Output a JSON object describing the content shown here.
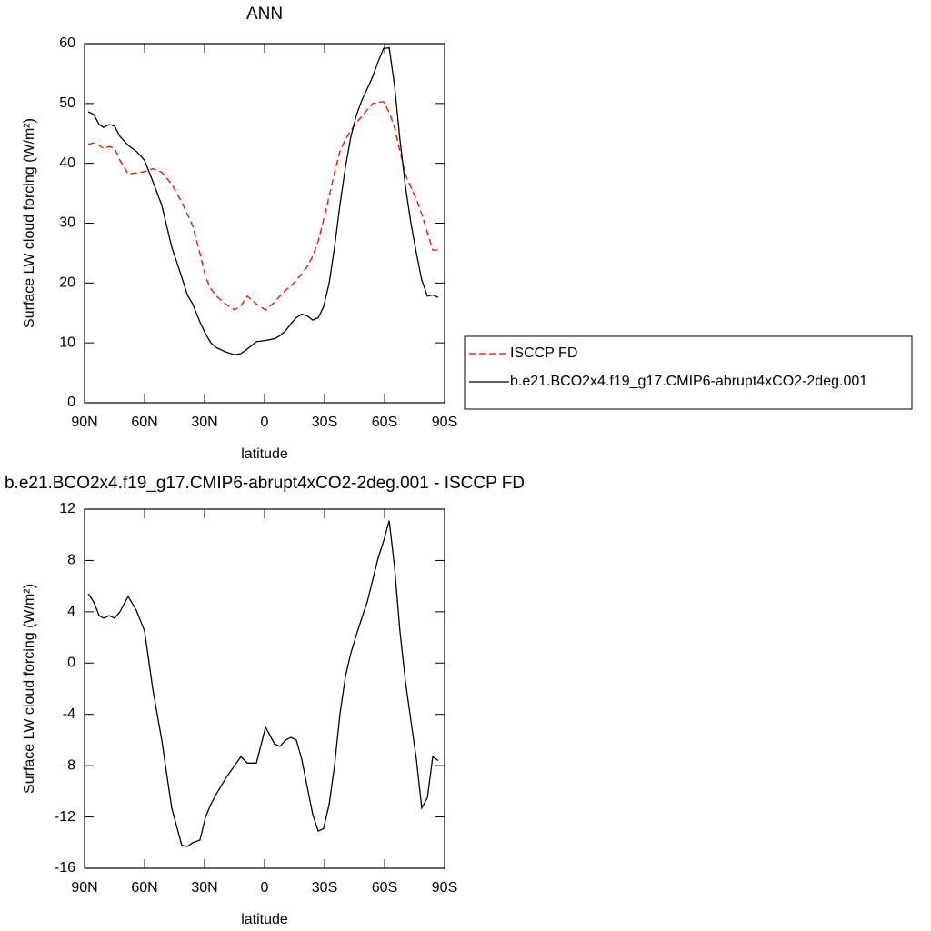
{
  "chart_data": [
    {
      "type": "line",
      "title": "ANN",
      "xlabel": "latitude",
      "ylabel": "Surface LW cloud forcing (W/m²)",
      "x": [
        88.2,
        85.5,
        82.7,
        80.5,
        77.7,
        75.0,
        72.3,
        68.2,
        64.1,
        60.0,
        55.9,
        51.4,
        46.4,
        41.4,
        38.6,
        35.9,
        32.3,
        29.5,
        26.8,
        24.1,
        19.5,
        15.0,
        11.8,
        8.6,
        4.1,
        -0.5,
        -5.0,
        -7.7,
        -10.5,
        -13.2,
        -15.9,
        -18.6,
        -21.4,
        -24.1,
        -26.8,
        -29.5,
        -32.3,
        -35.0,
        -37.7,
        -40.5,
        -43.2,
        -45.9,
        -48.6,
        -51.4,
        -54.1,
        -56.8,
        -59.5,
        -62.3,
        -65.0,
        -67.7,
        -70.5,
        -73.2,
        -75.9,
        -78.6,
        -81.4,
        -84.1,
        -86.8
      ],
      "series": [
        {
          "name": "ISCCP FD",
          "color": "#ff0000",
          "dashed": true,
          "values": [
            43.2,
            43.4,
            43,
            42.5,
            42.8,
            42.5,
            40.5,
            38.2,
            38.4,
            38.6,
            39.1,
            38.5,
            36.5,
            33.5,
            31.5,
            29.5,
            25,
            21,
            19,
            17.8,
            16.5,
            15.5,
            16.2,
            17.8,
            16.5,
            15.5,
            16.8,
            17.8,
            18.8,
            19.5,
            20.5,
            21.5,
            22.8,
            24.5,
            27,
            30.5,
            34.5,
            38.5,
            42,
            44,
            45.5,
            46.8,
            47.8,
            49,
            50,
            50.2,
            50.3,
            48.5,
            46,
            42,
            38,
            36,
            34,
            31.5,
            28.5,
            25.5,
            25.5
          ]
        },
        {
          "name": "b.e21.BCO2x4.f19_g17.CMIP6-abrupt4xCO2-2deg.001",
          "color": "#000000",
          "dashed": false,
          "values": [
            48.6,
            48.2,
            46.5,
            46,
            46.5,
            46.2,
            44.5,
            43,
            42,
            40.5,
            37,
            33,
            26,
            21,
            18,
            16.5,
            13.5,
            11.5,
            10,
            9.2,
            8.5,
            8,
            8.2,
            9,
            10.2,
            10.4,
            10.7,
            11.2,
            12,
            13.2,
            14.2,
            14.8,
            14.5,
            13.8,
            14.2,
            16,
            20,
            26,
            33,
            39.5,
            44.5,
            48,
            50.5,
            52.5,
            54.5,
            57,
            59.2,
            59.3,
            53,
            44,
            36,
            30,
            25,
            20.5,
            17.8,
            18,
            17.6
          ]
        }
      ],
      "xlim": [
        90,
        -90
      ],
      "xticks": [
        {
          "value": 90,
          "label": "90N"
        },
        {
          "value": 60,
          "label": "60N"
        },
        {
          "value": 30,
          "label": "30N"
        },
        0,
        {
          "value": -30,
          "label": "30S"
        },
        {
          "value": -60,
          "label": "60S"
        },
        {
          "value": -90,
          "label": "90S"
        }
      ],
      "ylim": [
        0,
        60
      ],
      "yticks": [
        0,
        10,
        20,
        30,
        40,
        50,
        60
      ],
      "legend": "right"
    },
    {
      "type": "line",
      "title": "b.e21.BCO2x4.f19_g17.CMIP6-abrupt4xCO2-2deg.001 - ISCCP FD",
      "xlabel": "latitude",
      "ylabel": "Surface LW cloud forcing (W/m²)",
      "x": [
        88.2,
        85.5,
        82.7,
        80.5,
        77.7,
        75.0,
        72.3,
        68.2,
        64.1,
        60.0,
        55.9,
        51.4,
        46.4,
        41.4,
        38.6,
        35.9,
        32.3,
        29.5,
        26.8,
        24.1,
        19.5,
        15.0,
        11.8,
        8.6,
        4.1,
        -0.5,
        -5.0,
        -7.7,
        -10.5,
        -13.2,
        -15.9,
        -18.6,
        -21.4,
        -24.1,
        -26.8,
        -29.5,
        -32.3,
        -35.0,
        -37.7,
        -40.5,
        -43.2,
        -45.9,
        -48.6,
        -51.4,
        -54.1,
        -56.8,
        -59.5,
        -62.3,
        -65.0,
        -67.7,
        -70.5,
        -73.2,
        -75.9,
        -78.6,
        -81.4,
        -84.1,
        -86.8
      ],
      "values": [
        5.4,
        4.8,
        3.7,
        3.5,
        3.7,
        3.5,
        4,
        5.2,
        4.1,
        2.5,
        -2,
        -6,
        -11.3,
        -14.2,
        -14.3,
        -14,
        -13.8,
        -12,
        -11,
        -10.2,
        -9,
        -8,
        -7.3,
        -7.8,
        -7.8,
        -5,
        -6.3,
        -6.5,
        -6,
        -5.8,
        -6,
        -7.5,
        -9.7,
        -11.8,
        -13.1,
        -12.9,
        -11,
        -8,
        -4,
        -1,
        0.8,
        2.2,
        3.5,
        4.8,
        6.5,
        8.2,
        9.5,
        11.1,
        7.5,
        2.5,
        -1.5,
        -4.5,
        -7.5,
        -11.3,
        -10.5,
        -7.3,
        -7.6
      ],
      "color": "#000000",
      "xlim": [
        90,
        -90
      ],
      "xticks": [
        {
          "value": 90,
          "label": "90N"
        },
        {
          "value": 60,
          "label": "60N"
        },
        {
          "value": 30,
          "label": "30N"
        },
        0,
        {
          "value": -30,
          "label": "30S"
        },
        {
          "value": -60,
          "label": "60S"
        },
        {
          "value": -90,
          "label": "90S"
        }
      ],
      "ylim": [
        -16,
        12
      ],
      "yticks": [
        -16,
        -12,
        -8,
        -4,
        0,
        4,
        8,
        12
      ]
    }
  ]
}
